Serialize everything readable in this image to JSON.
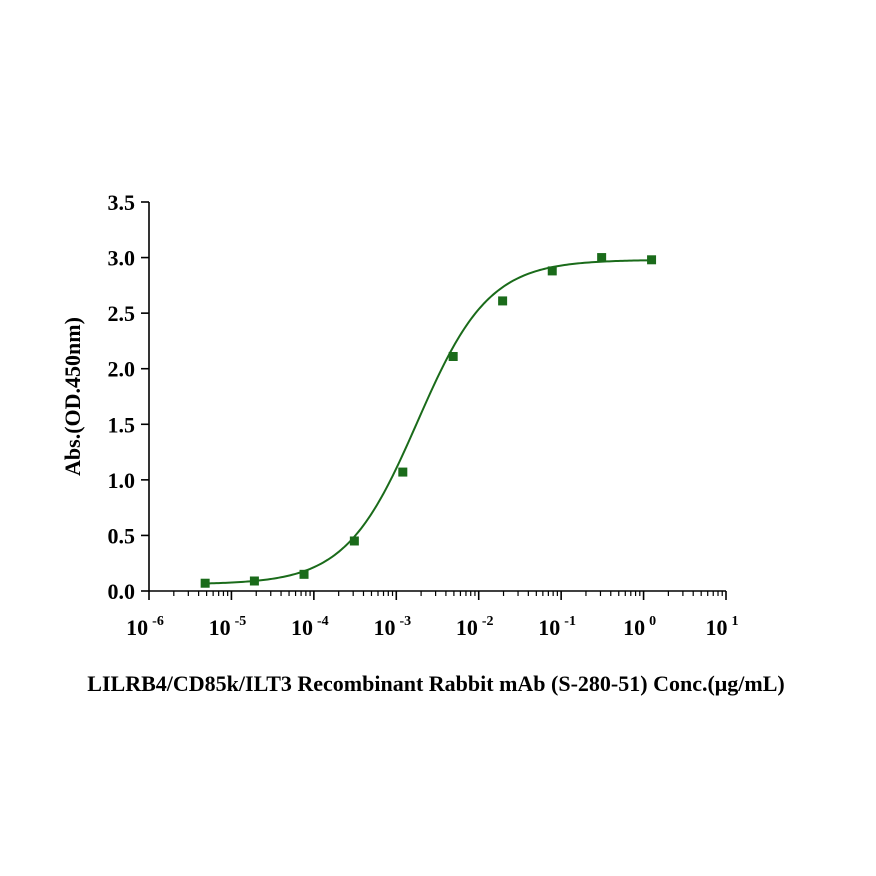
{
  "chart_data": {
    "type": "scatter",
    "xscale": "log",
    "xlabel": "LILRB4/CD85k/ILT3 Recombinant Rabbit mAb (S-280-51) Conc.(μg/mL)",
    "ylabel": "Abs.(OD.450nm)",
    "xlim": [
      1e-06,
      10
    ],
    "ylim": [
      0,
      3.5
    ],
    "grid": false,
    "legend": "none",
    "color": "#1a6b1a",
    "x_ticks": [
      {
        "base": "10",
        "exp": "-6"
      },
      {
        "base": "10",
        "exp": "-5"
      },
      {
        "base": "10",
        "exp": "-4"
      },
      {
        "base": "10",
        "exp": "-3"
      },
      {
        "base": "10",
        "exp": "-2"
      },
      {
        "base": "10",
        "exp": "-1"
      },
      {
        "base": "10",
        "exp": "0"
      },
      {
        "base": "10",
        "exp": "1"
      }
    ],
    "y_ticks": [
      "0.0",
      "0.5",
      "1.0",
      "1.5",
      "2.0",
      "2.5",
      "3.0",
      "3.5"
    ],
    "series": [
      {
        "x": [
          4.8e-06,
          1.9e-05,
          7.6e-05,
          0.00031,
          0.0012,
          0.0049,
          0.0195,
          0.078,
          0.31,
          1.25
        ],
        "y": [
          0.07,
          0.09,
          0.15,
          0.45,
          1.07,
          2.11,
          2.61,
          2.88,
          3.0,
          2.98
        ],
        "fit": "4PL",
        "fit_params": {
          "bottom": 0.06,
          "top": 2.98,
          "ec50": 0.0018,
          "hill": 1.0
        }
      }
    ]
  }
}
